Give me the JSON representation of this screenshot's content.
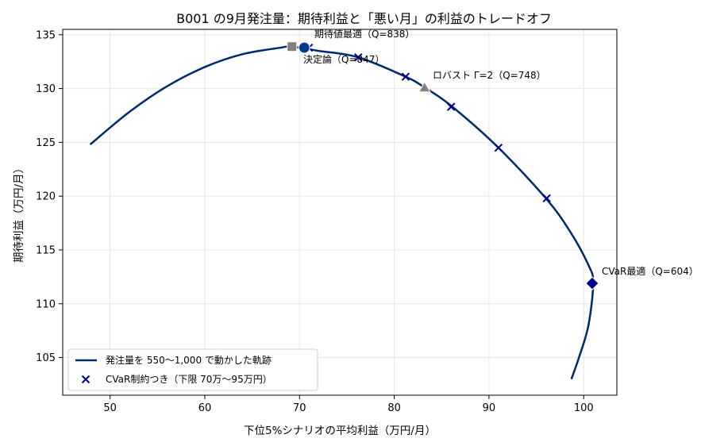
{
  "chart_data": {
    "type": "line",
    "title": "B001 の9月発注量：期待利益と「悪い月」の利益のトレードオフ",
    "xlabel": "下位5%シナリオの平均利益（万円/月）",
    "ylabel": "期待利益（万円/月）",
    "xlim": [
      45,
      103.5
    ],
    "ylim": [
      101.5,
      135.5
    ],
    "xticks": [
      50,
      60,
      70,
      80,
      90,
      100
    ],
    "yticks": [
      105,
      110,
      115,
      120,
      125,
      130,
      135
    ],
    "grid": true,
    "legend_position": "bottom-left",
    "series": [
      {
        "name": "発注量を 550〜1,000 で動かした軌跡",
        "kind": "line",
        "color": "#002a6e",
        "x": [
          47.9,
          52,
          56,
          60,
          64,
          68,
          69.2,
          72,
          76.2,
          81.2,
          83.2,
          86,
          91,
          96,
          98.5,
          100.5,
          101,
          100.5,
          99.5,
          98.7
        ],
        "y": [
          124.8,
          127.8,
          130.2,
          132.0,
          133.2,
          133.8,
          133.9,
          133.5,
          132.9,
          131.1,
          130.1,
          128.4,
          124.5,
          119.8,
          116.8,
          113.6,
          111.9,
          108.0,
          105.0,
          103.0
        ]
      },
      {
        "name": "CVaR制約つき（下限 70万〜95万円）",
        "kind": "scatter",
        "marker": "x",
        "color": "#00008b",
        "x": [
          71,
          76.2,
          81.2,
          86,
          91,
          96.1
        ],
        "y": [
          133.8,
          132.9,
          131.1,
          128.3,
          124.5,
          119.8
        ]
      }
    ],
    "highlights": [
      {
        "marker": "square",
        "color": "#808080",
        "x": 69.2,
        "y": 133.9
      },
      {
        "marker": "circle",
        "color": "#003a8c",
        "x": 70.5,
        "y": 133.8
      },
      {
        "marker": "triangle",
        "color": "#808080",
        "x": 83.2,
        "y": 130.1
      },
      {
        "marker": "diamond",
        "color": "#00008b",
        "x": 100.9,
        "y": 111.9
      }
    ],
    "annotations": {
      "expected": "期待値最適（Q=838）",
      "decision": "決定論（Q=847）",
      "robust": "ロバスト Γ=2（Q=748）",
      "cvar": "CVaR最適（Q=604）"
    }
  }
}
